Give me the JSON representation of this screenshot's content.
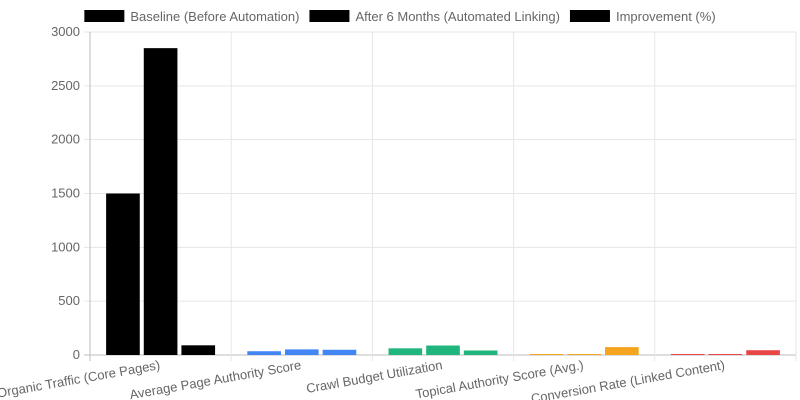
{
  "chart_data": {
    "type": "bar",
    "categories": [
      "Organic Traffic (Core Pages)",
      "Average Page Authority Score",
      "Crawl Budget Utilization",
      "Topical Authority Score (Avg.)",
      "Conversion Rate (Linked Content)"
    ],
    "series": [
      {
        "name": "Baseline (Before Automation)",
        "values": [
          1500,
          35,
          62,
          4.5,
          1.8
        ]
      },
      {
        "name": "After 6 Months (Automated Linking)",
        "values": [
          2850,
          52,
          88,
          7.8,
          2.6
        ]
      },
      {
        "name": "Improvement (%)",
        "values": [
          90,
          48.6,
          41.9,
          73.3,
          44.4
        ]
      }
    ],
    "bar_colors": [
      [
        "#000000",
        "#000000",
        "#000000"
      ],
      [
        "#4285f4",
        "#4285f4",
        "#4285f4"
      ],
      [
        "#1fb57c",
        "#1fb57c",
        "#1fb57c"
      ],
      [
        "#f4a41f",
        "#f4a41f",
        "#f4a41f"
      ],
      [
        "#e84545",
        "#e84545",
        "#e84545"
      ]
    ],
    "legend_colors": [
      "#000000",
      "#000000",
      "#000000"
    ],
    "yticks": [
      0,
      500,
      1000,
      1500,
      2000,
      2500,
      3000
    ],
    "ylim": [
      0,
      3000
    ],
    "grid": true,
    "legend_position": "top",
    "title": "",
    "xlabel": "",
    "ylabel": ""
  }
}
